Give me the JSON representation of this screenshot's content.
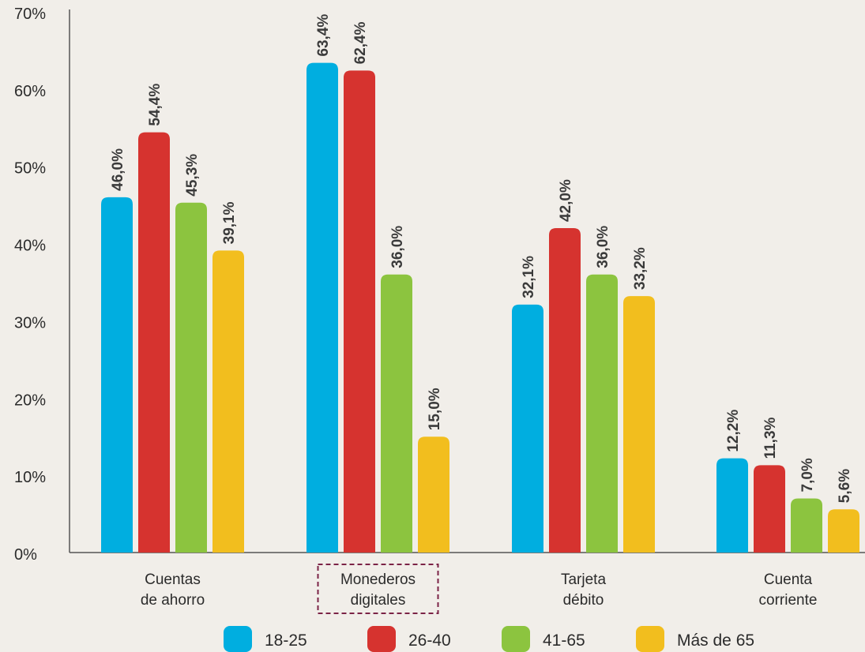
{
  "chart_data": {
    "type": "bar",
    "categories": [
      [
        "Cuentas",
        "de ahorro"
      ],
      [
        "Monederos",
        "digitales"
      ],
      [
        "Tarjeta",
        "débito"
      ],
      [
        "Cuenta",
        "corriente"
      ]
    ],
    "highlighted_category_index": 1,
    "series": [
      {
        "name": "18-25",
        "color": "#00aee0",
        "values": [
          46.0,
          63.4,
          32.1,
          12.2
        ],
        "labels": [
          "46,0%",
          "63,4%",
          "32,1%",
          "12,2%"
        ]
      },
      {
        "name": "26-40",
        "color": "#d6332f",
        "values": [
          54.4,
          62.4,
          42.0,
          11.3
        ],
        "labels": [
          "54,4%",
          "62,4%",
          "42,0%",
          "11,3%"
        ]
      },
      {
        "name": "41-65",
        "color": "#8cc43f",
        "values": [
          45.3,
          36.0,
          36.0,
          7.0
        ],
        "labels": [
          "45,3%",
          "36,0%",
          "36,0%",
          "7,0%"
        ]
      },
      {
        "name": "Más de 65",
        "color": "#f2be1e",
        "values": [
          39.1,
          15.0,
          33.2,
          5.6
        ],
        "labels": [
          "39,1%",
          "15,0%",
          "33,2%",
          "5,6%"
        ]
      }
    ],
    "yticks": [
      "0%",
      "10%",
      "20%",
      "30%",
      "40%",
      "50%",
      "60%",
      "70%"
    ],
    "ylim": [
      0,
      70
    ],
    "grid": false,
    "legend_position": "bottom",
    "title": "",
    "xlabel": "",
    "ylabel": ""
  }
}
